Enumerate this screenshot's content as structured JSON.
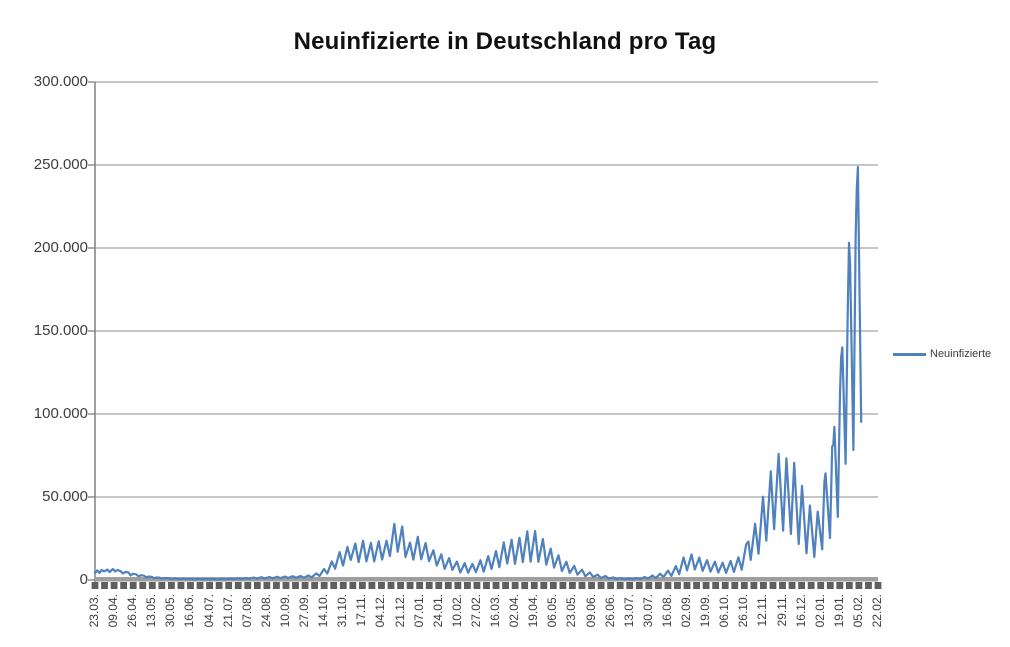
{
  "title": "Neuinfizierte in Deutschland pro Tag",
  "legend": {
    "label": "Neuinfizierte"
  },
  "colors": {
    "series": "#4F81BD",
    "gridline": "#8c8c8c",
    "axis_line": "#808080",
    "axis_band": "#9e9e9e",
    "tick_dash": "#5f5f5f",
    "text": "#3d3d3d",
    "title_text": "#111111",
    "background": "#ffffff"
  },
  "chart_data": {
    "type": "line",
    "title": "Neuinfizierte in Deutschland pro Tag",
    "xlabel": "",
    "ylabel": "",
    "ylim": [
      0,
      300000
    ],
    "y_tick_step": 50000,
    "grid": true,
    "legend_position": "right",
    "y_labels": [
      "300.000",
      "250.000",
      "200.000",
      "150.000",
      "100.000",
      "50.000",
      "0"
    ],
    "x_labels": [
      "23.03.",
      "09.04.",
      "26.04.",
      "13.05.",
      "30.05.",
      "16.06.",
      "04.07.",
      "21.07.",
      "07.08.",
      "24.08.",
      "10.09.",
      "27.09.",
      "14.10.",
      "31.10.",
      "17.11.",
      "04.12.",
      "21.12.",
      "07.01.",
      "24.01.",
      "10.02.",
      "27.02.",
      "16.03.",
      "02.04.",
      "19.04.",
      "06.05.",
      "23.05.",
      "09.06.",
      "26.06.",
      "13.07.",
      "30.07.",
      "16.08.",
      "02.09.",
      "19.09.",
      "06.10.",
      "26.10.",
      "12.11.",
      "29.11.",
      "16.12.",
      "02.01.",
      "19.01.",
      "05.02.",
      "22.02."
    ],
    "x_start_date": "23.03.2020",
    "x_end_date": "22.02.2022",
    "x_span_days": 701,
    "series": [
      {
        "name": "Neuinfizierte",
        "color": "#4F81BD",
        "points_day_value": [
          [
            0,
            4400
          ],
          [
            1,
            4900
          ],
          [
            2,
            5800
          ],
          [
            4,
            4200
          ],
          [
            6,
            6100
          ],
          [
            8,
            5200
          ],
          [
            9,
            5500
          ],
          [
            11,
            6300
          ],
          [
            13,
            4800
          ],
          [
            16,
            6600
          ],
          [
            18,
            5100
          ],
          [
            20,
            6000
          ],
          [
            23,
            5300
          ],
          [
            25,
            3900
          ],
          [
            27,
            4800
          ],
          [
            30,
            4500
          ],
          [
            32,
            2800
          ],
          [
            34,
            3800
          ],
          [
            37,
            3400
          ],
          [
            39,
            2100
          ],
          [
            41,
            2900
          ],
          [
            44,
            2600
          ],
          [
            46,
            1500
          ],
          [
            48,
            2100
          ],
          [
            51,
            1800
          ],
          [
            53,
            1100
          ],
          [
            55,
            1500
          ],
          [
            58,
            1400
          ],
          [
            60,
            800
          ],
          [
            62,
            1200
          ],
          [
            65,
            1100
          ],
          [
            68,
            600
          ],
          [
            72,
            900
          ],
          [
            75,
            450
          ],
          [
            79,
            800
          ],
          [
            82,
            400
          ],
          [
            86,
            700
          ],
          [
            89,
            350
          ],
          [
            93,
            650
          ],
          [
            96,
            350
          ],
          [
            100,
            600
          ],
          [
            103,
            350
          ],
          [
            107,
            550
          ],
          [
            110,
            300
          ],
          [
            114,
            600
          ],
          [
            117,
            350
          ],
          [
            121,
            800
          ],
          [
            124,
            450
          ],
          [
            128,
            1000
          ],
          [
            131,
            550
          ],
          [
            135,
            1200
          ],
          [
            138,
            650
          ],
          [
            142,
            1500
          ],
          [
            145,
            800
          ],
          [
            149,
            1700
          ],
          [
            152,
            900
          ],
          [
            156,
            1800
          ],
          [
            159,
            1000
          ],
          [
            163,
            1900
          ],
          [
            166,
            1100
          ],
          [
            170,
            2100
          ],
          [
            173,
            1200
          ],
          [
            177,
            2300
          ],
          [
            180,
            1300
          ],
          [
            184,
            2400
          ],
          [
            187,
            1400
          ],
          [
            191,
            2700
          ],
          [
            194,
            1600
          ],
          [
            198,
            4000
          ],
          [
            201,
            2400
          ],
          [
            205,
            6600
          ],
          [
            208,
            3900
          ],
          [
            212,
            11200
          ],
          [
            215,
            6800
          ],
          [
            219,
            16800
          ],
          [
            222,
            8700
          ],
          [
            226,
            19900
          ],
          [
            229,
            12100
          ],
          [
            233,
            22000
          ],
          [
            236,
            10800
          ],
          [
            240,
            23600
          ],
          [
            243,
            11200
          ],
          [
            247,
            22300
          ],
          [
            250,
            11200
          ],
          [
            254,
            23400
          ],
          [
            257,
            12300
          ],
          [
            261,
            23700
          ],
          [
            264,
            14400
          ],
          [
            268,
            33800
          ],
          [
            271,
            17000
          ],
          [
            275,
            32200
          ],
          [
            278,
            13800
          ],
          [
            282,
            22500
          ],
          [
            285,
            12300
          ],
          [
            289,
            26000
          ],
          [
            292,
            12500
          ],
          [
            296,
            22300
          ],
          [
            299,
            11400
          ],
          [
            303,
            17900
          ],
          [
            306,
            8700
          ],
          [
            310,
            15500
          ],
          [
            313,
            6700
          ],
          [
            317,
            13200
          ],
          [
            320,
            6100
          ],
          [
            324,
            11000
          ],
          [
            327,
            4500
          ],
          [
            331,
            10200
          ],
          [
            334,
            4400
          ],
          [
            338,
            9700
          ],
          [
            341,
            4700
          ],
          [
            345,
            11900
          ],
          [
            348,
            5000
          ],
          [
            352,
            14400
          ],
          [
            355,
            6600
          ],
          [
            359,
            17500
          ],
          [
            362,
            7700
          ],
          [
            366,
            22700
          ],
          [
            369,
            9900
          ],
          [
            373,
            24300
          ],
          [
            376,
            9700
          ],
          [
            380,
            25500
          ],
          [
            383,
            10800
          ],
          [
            387,
            29400
          ],
          [
            390,
            11000
          ],
          [
            394,
            29500
          ],
          [
            397,
            10900
          ],
          [
            401,
            24700
          ],
          [
            404,
            9200
          ],
          [
            408,
            18900
          ],
          [
            411,
            7500
          ],
          [
            415,
            14900
          ],
          [
            418,
            5400
          ],
          [
            422,
            11000
          ],
          [
            425,
            4200
          ],
          [
            429,
            8500
          ],
          [
            432,
            3200
          ],
          [
            436,
            6200
          ],
          [
            439,
            2300
          ],
          [
            443,
            4600
          ],
          [
            446,
            1800
          ],
          [
            450,
            3200
          ],
          [
            453,
            1200
          ],
          [
            457,
            2400
          ],
          [
            460,
            900
          ],
          [
            464,
            1500
          ],
          [
            467,
            600
          ],
          [
            471,
            1000
          ],
          [
            474,
            450
          ],
          [
            478,
            900
          ],
          [
            481,
            440
          ],
          [
            485,
            1200
          ],
          [
            488,
            550
          ],
          [
            492,
            1800
          ],
          [
            495,
            800
          ],
          [
            499,
            2700
          ],
          [
            502,
            1200
          ],
          [
            506,
            3800
          ],
          [
            509,
            1800
          ],
          [
            513,
            5600
          ],
          [
            516,
            2500
          ],
          [
            520,
            8400
          ],
          [
            523,
            3500
          ],
          [
            527,
            13600
          ],
          [
            530,
            5800
          ],
          [
            534,
            15400
          ],
          [
            537,
            6300
          ],
          [
            541,
            13500
          ],
          [
            544,
            5500
          ],
          [
            548,
            12000
          ],
          [
            551,
            5000
          ],
          [
            555,
            11000
          ],
          [
            558,
            4500
          ],
          [
            562,
            10400
          ],
          [
            565,
            4300
          ],
          [
            569,
            11500
          ],
          [
            572,
            4900
          ],
          [
            576,
            13700
          ],
          [
            579,
            6200
          ],
          [
            583,
            21500
          ],
          [
            585,
            23200
          ],
          [
            587,
            12100
          ],
          [
            591,
            33900
          ],
          [
            594,
            15800
          ],
          [
            598,
            50200
          ],
          [
            601,
            23600
          ],
          [
            605,
            65400
          ],
          [
            608,
            30600
          ],
          [
            612,
            76000
          ],
          [
            616,
            29700
          ],
          [
            619,
            73200
          ],
          [
            623,
            27800
          ],
          [
            626,
            70600
          ],
          [
            630,
            21700
          ],
          [
            633,
            56700
          ],
          [
            637,
            16100
          ],
          [
            640,
            44900
          ],
          [
            644,
            13900
          ],
          [
            647,
            41200
          ],
          [
            651,
            18500
          ],
          [
            653,
            58900
          ],
          [
            654,
            64300
          ],
          [
            658,
            25300
          ],
          [
            660,
            80400
          ],
          [
            661,
            81400
          ],
          [
            662,
            92200
          ],
          [
            665,
            38000
          ],
          [
            667,
            112300
          ],
          [
            668,
            133500
          ],
          [
            669,
            140200
          ],
          [
            672,
            70000
          ],
          [
            674,
            164000
          ],
          [
            675,
            203100
          ],
          [
            676,
            190100
          ],
          [
            679,
            78300
          ],
          [
            681,
            208500
          ],
          [
            682,
            236100
          ],
          [
            683,
            248800
          ],
          [
            686,
            95300
          ]
        ]
      }
    ]
  }
}
